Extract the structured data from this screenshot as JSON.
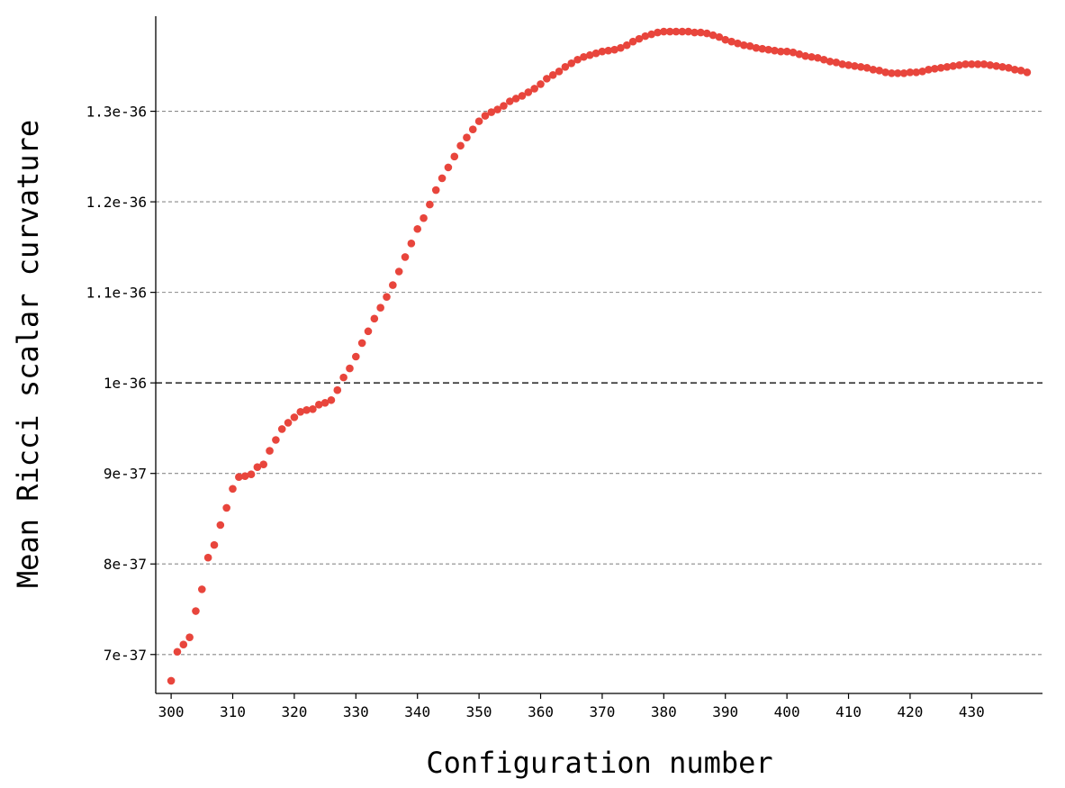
{
  "chart_data": {
    "type": "scatter",
    "title": "",
    "xlabel": "Configuration number",
    "ylabel": "Mean Ricci scalar curvature",
    "xlim": [
      297.5,
      441.5
    ],
    "ylim": [
      6.57e-37,
      1.405e-36
    ],
    "x_ticks": [
      300,
      310,
      320,
      330,
      340,
      350,
      360,
      370,
      380,
      390,
      400,
      410,
      420,
      430
    ],
    "x_tick_labels": [
      "300",
      "310",
      "320",
      "330",
      "340",
      "350",
      "360",
      "370",
      "380",
      "390",
      "400",
      "410",
      "420",
      "430"
    ],
    "y_ticks": [
      7e-37,
      8e-37,
      9e-37,
      1e-36,
      1.1e-36,
      1.2e-36,
      1.3e-36
    ],
    "y_tick_labels": [
      "7e-37",
      "8e-37",
      "9e-37",
      "1e-36",
      "1.1e-36",
      "1.2e-36",
      "1.3e-36"
    ],
    "grid": "horizontal dashed",
    "reference_line": 1e-36,
    "marker_color": "#e8453c",
    "series": [
      {
        "x": [
          300,
          301,
          302,
          303,
          304,
          305,
          306,
          307,
          308,
          309,
          310,
          311,
          312,
          313,
          314,
          315,
          316,
          317,
          318,
          319,
          320,
          321,
          322,
          323,
          324,
          325,
          326,
          327,
          328,
          329,
          330,
          331,
          332,
          333,
          334,
          335,
          336,
          337,
          338,
          339,
          340,
          341,
          342,
          343,
          344,
          345,
          346,
          347,
          348,
          349,
          350,
          351,
          352,
          353,
          354,
          355,
          356,
          357,
          358,
          359,
          360,
          361,
          362,
          363,
          364,
          365,
          366,
          367,
          368,
          369,
          370,
          371,
          372,
          373,
          374,
          375,
          376,
          377,
          378,
          379,
          380,
          381,
          382,
          383,
          384,
          385,
          386,
          387,
          388,
          389,
          390,
          391,
          392,
          393,
          394,
          395,
          396,
          397,
          398,
          399,
          400,
          401,
          402,
          403,
          404,
          405,
          406,
          407,
          408,
          409,
          410,
          411,
          412,
          413,
          414,
          415,
          416,
          417,
          418,
          419,
          420,
          421,
          422,
          423,
          424,
          425,
          426,
          427,
          428,
          429,
          430,
          431,
          432,
          433,
          434,
          435,
          436,
          437,
          438,
          439
        ],
        "y": [
          6.71e-37,
          7.03e-37,
          7.11e-37,
          7.19e-37,
          7.48e-37,
          7.72e-37,
          8.07e-37,
          8.21e-37,
          8.43e-37,
          8.62e-37,
          8.83e-37,
          8.96e-37,
          8.97e-37,
          8.99e-37,
          9.07e-37,
          9.1e-37,
          9.25e-37,
          9.37e-37,
          9.49e-37,
          9.56e-37,
          9.62e-37,
          9.68e-37,
          9.7e-37,
          9.71e-37,
          9.76e-37,
          9.78e-37,
          9.81e-37,
          9.92e-37,
          1.006e-36,
          1.016e-36,
          1.029e-36,
          1.044e-36,
          1.057e-36,
          1.071e-36,
          1.083e-36,
          1.095e-36,
          1.108e-36,
          1.123e-36,
          1.139e-36,
          1.154e-36,
          1.17e-36,
          1.182e-36,
          1.197e-36,
          1.213e-36,
          1.226e-36,
          1.238e-36,
          1.25e-36,
          1.262e-36,
          1.271e-36,
          1.28e-36,
          1.289e-36,
          1.295e-36,
          1.299e-36,
          1.302e-36,
          1.306e-36,
          1.311e-36,
          1.314e-36,
          1.317e-36,
          1.321e-36,
          1.325e-36,
          1.33e-36,
          1.336e-36,
          1.34e-36,
          1.344e-36,
          1.349e-36,
          1.353e-36,
          1.357e-36,
          1.36e-36,
          1.362e-36,
          1.364e-36,
          1.366e-36,
          1.367e-36,
          1.368e-36,
          1.37e-36,
          1.373e-36,
          1.377e-36,
          1.38e-36,
          1.383e-36,
          1.385e-36,
          1.387e-36,
          1.388e-36,
          1.388e-36,
          1.388e-36,
          1.388e-36,
          1.388e-36,
          1.387e-36,
          1.387e-36,
          1.386e-36,
          1.384e-36,
          1.382e-36,
          1.379e-36,
          1.377e-36,
          1.375e-36,
          1.373e-36,
          1.372e-36,
          1.37e-36,
          1.369e-36,
          1.368e-36,
          1.367e-36,
          1.366e-36,
          1.366e-36,
          1.365e-36,
          1.363e-36,
          1.361e-36,
          1.36e-36,
          1.359e-36,
          1.357e-36,
          1.355e-36,
          1.354e-36,
          1.352e-36,
          1.351e-36,
          1.35e-36,
          1.349e-36,
          1.348e-36,
          1.346e-36,
          1.345e-36,
          1.343e-36,
          1.342e-36,
          1.342e-36,
          1.342e-36,
          1.343e-36,
          1.343e-36,
          1.344e-36,
          1.346e-36,
          1.347e-36,
          1.348e-36,
          1.349e-36,
          1.35e-36,
          1.351e-36,
          1.352e-36,
          1.352e-36,
          1.352e-36,
          1.352e-36,
          1.351e-36,
          1.35e-36,
          1.349e-36,
          1.348e-36,
          1.346e-36,
          1.345e-36,
          1.343e-36
        ]
      }
    ]
  }
}
